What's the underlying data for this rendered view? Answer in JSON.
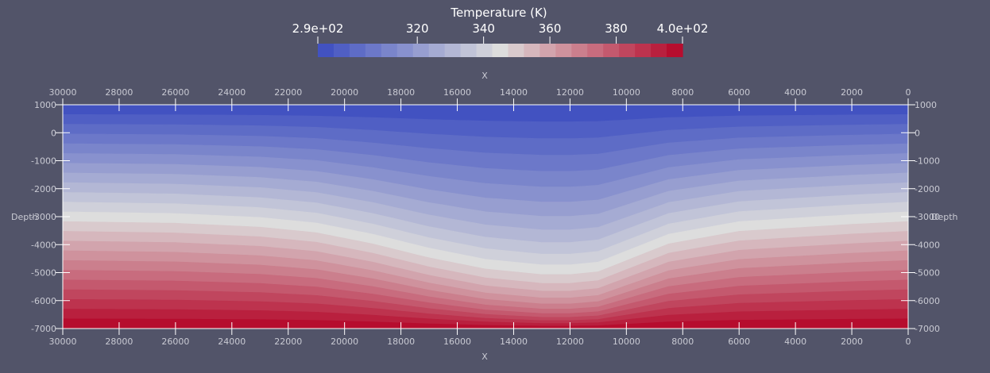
{
  "chart_data": {
    "type": "heatmap",
    "colorbar": {
      "title": "Temperature (K)",
      "ticks": [
        "2.9e+02",
        "320",
        "340",
        "360",
        "380",
        "4.0e+02"
      ],
      "tick_values": [
        290,
        320,
        340,
        360,
        380,
        400
      ],
      "range": [
        290,
        400
      ],
      "bands": 23,
      "colormap": "Cool to Warm"
    },
    "x_axis": {
      "title": "X",
      "range": [
        30000,
        0
      ],
      "ticks": [
        30000,
        28000,
        26000,
        24000,
        22000,
        20000,
        18000,
        16000,
        14000,
        12000,
        10000,
        8000,
        6000,
        4000,
        2000,
        0
      ]
    },
    "y_axis": {
      "title": "Depth",
      "range": [
        -7000,
        1000
      ],
      "ticks": [
        1000,
        0,
        -1000,
        -2000,
        -3000,
        -4000,
        -5000,
        -6000,
        -7000
      ]
    },
    "field": {
      "description_points_x": [
        30000,
        26000,
        23000,
        21000,
        19000,
        17000,
        15000,
        13000,
        12000,
        11000,
        9500,
        8500,
        6000,
        2000,
        0
      ],
      "cool_depth_offset_profile": [
        0,
        60,
        200,
        400,
        800,
        1300,
        1700,
        1900,
        1900,
        1800,
        1200,
        800,
        350,
        100,
        0
      ]
    },
    "colors": {
      "background": "#525469",
      "axis": "#c9cad3",
      "text": "#ffffff"
    }
  }
}
